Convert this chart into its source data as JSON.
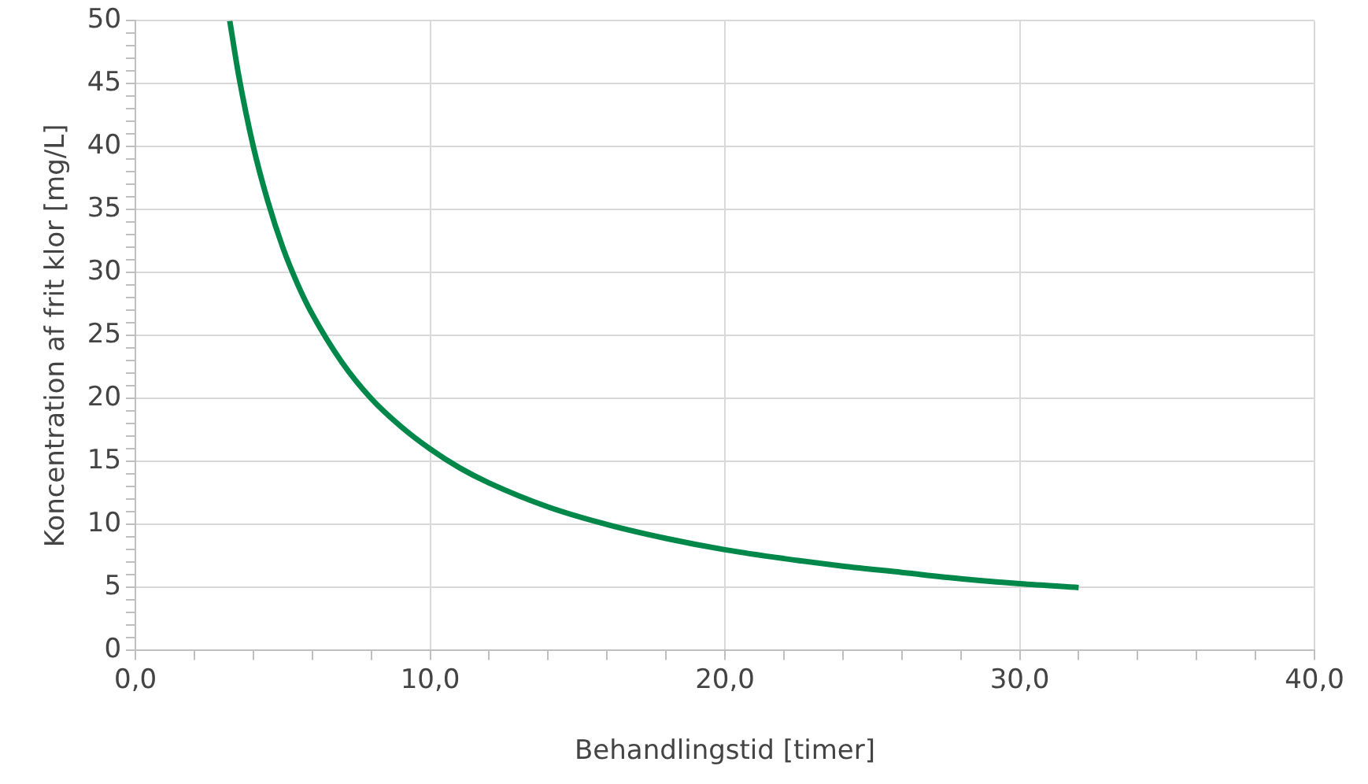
{
  "chart_data": {
    "type": "line",
    "xlabel": "Behandlingstid [timer]",
    "ylabel": "Koncentration af frit klor [mg/L]",
    "x": [
      3.2,
      3.5,
      4,
      4.5,
      5,
      5.5,
      6,
      7,
      8,
      9,
      10,
      11,
      12,
      14,
      16,
      18,
      20,
      22,
      24,
      26,
      28,
      30,
      32
    ],
    "series": [
      {
        "color": "#00884a",
        "values": [
          50,
          45.7,
          40,
          35.6,
          32,
          29.1,
          26.7,
          22.9,
          20,
          17.8,
          16,
          14.5,
          13.3,
          11.4,
          10,
          8.9,
          8,
          7.3,
          6.7,
          6.2,
          5.7,
          5.3,
          5
        ]
      }
    ],
    "xlim": [
      0,
      40
    ],
    "xticks": [
      {
        "value": 0,
        "label": "0,0"
      },
      {
        "value": 2,
        "label": null
      },
      {
        "value": 4,
        "label": null
      },
      {
        "value": 6,
        "label": null
      },
      {
        "value": 8,
        "label": null
      },
      {
        "value": 10,
        "label": "10,0"
      },
      {
        "value": 12,
        "label": null
      },
      {
        "value": 14,
        "label": null
      },
      {
        "value": 16,
        "label": null
      },
      {
        "value": 18,
        "label": null
      },
      {
        "value": 20,
        "label": "20,0"
      },
      {
        "value": 22,
        "label": null
      },
      {
        "value": 24,
        "label": null
      },
      {
        "value": 26,
        "label": null
      },
      {
        "value": 28,
        "label": null
      },
      {
        "value": 30,
        "label": "30,0"
      },
      {
        "value": 32,
        "label": null
      },
      {
        "value": 34,
        "label": null
      },
      {
        "value": 36,
        "label": null
      },
      {
        "value": 38,
        "label": null
      },
      {
        "value": 40,
        "label": "40,0"
      }
    ],
    "ylim": [
      0,
      50
    ],
    "yticks": [
      0,
      {
        "value": 1,
        "label": null
      },
      {
        "value": 2,
        "label": null
      },
      {
        "value": 3,
        "label": null
      },
      {
        "value": 4,
        "label": null
      },
      5,
      {
        "value": 6,
        "label": null
      },
      {
        "value": 7,
        "label": null
      },
      {
        "value": 8,
        "label": null
      },
      {
        "value": 9,
        "label": null
      },
      10,
      {
        "value": 11,
        "label": null
      },
      {
        "value": 12,
        "label": null
      },
      {
        "value": 13,
        "label": null
      },
      {
        "value": 14,
        "label": null
      },
      15,
      {
        "value": 16,
        "label": null
      },
      {
        "value": 17,
        "label": null
      },
      {
        "value": 18,
        "label": null
      },
      {
        "value": 19,
        "label": null
      },
      20,
      {
        "value": 21,
        "label": null
      },
      {
        "value": 22,
        "label": null
      },
      {
        "value": 23,
        "label": null
      },
      {
        "value": 24,
        "label": null
      },
      25,
      {
        "value": 26,
        "label": null
      },
      {
        "value": 27,
        "label": null
      },
      {
        "value": 28,
        "label": null
      },
      {
        "value": 29,
        "label": null
      },
      30,
      {
        "value": 31,
        "label": null
      },
      {
        "value": 32,
        "label": null
      },
      {
        "value": 33,
        "label": null
      },
      {
        "value": 34,
        "label": null
      },
      35,
      {
        "value": 36,
        "label": null
      },
      {
        "value": 37,
        "label": null
      },
      {
        "value": 38,
        "label": null
      },
      {
        "value": 39,
        "label": null
      },
      40,
      {
        "value": 41,
        "label": null
      },
      {
        "value": 42,
        "label": null
      },
      {
        "value": 43,
        "label": null
      },
      {
        "value": 44,
        "label": null
      },
      45,
      {
        "value": 46,
        "label": null
      },
      {
        "value": 47,
        "label": null
      },
      {
        "value": 48,
        "label": null
      },
      {
        "value": 49,
        "label": null
      },
      50
    ],
    "grid": true,
    "legend": false,
    "marker": "none",
    "line_style": "solid"
  }
}
